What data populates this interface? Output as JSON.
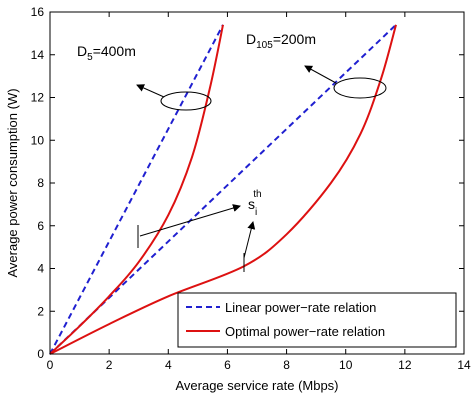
{
  "chart_data": {
    "type": "line",
    "xlabel": "Average service rate (Mbps)",
    "ylabel": "Average power consumption (W)",
    "xlim": [
      0,
      14
    ],
    "ylim": [
      0,
      16
    ],
    "xticks": [
      "0",
      "2",
      "4",
      "6",
      "8",
      "10",
      "12",
      "14"
    ],
    "yticks": [
      "0",
      "2",
      "4",
      "6",
      "8",
      "10",
      "12",
      "14",
      "16"
    ],
    "grid": false,
    "legend": "bottom-right",
    "colors": {
      "linear": "#2020d0",
      "optimal": "#dd1111"
    },
    "series": [
      {
        "name": "Linear power−rate relation",
        "style": "dashed",
        "points": [
          [
            0,
            0
          ],
          [
            5.85,
            15.4
          ]
        ]
      },
      {
        "name": "Linear power−rate relation",
        "style": "dashed",
        "points": [
          [
            0,
            0
          ],
          [
            11.7,
            15.4
          ]
        ]
      },
      {
        "name": "Optimal power−rate relation",
        "style": "solid",
        "points": [
          [
            0,
            0
          ],
          [
            1,
            1.3
          ],
          [
            2,
            2.7
          ],
          [
            3,
            4.3
          ],
          [
            4,
            6.5
          ],
          [
            4.8,
            9.2
          ],
          [
            5.4,
            12.4
          ],
          [
            5.85,
            15.4
          ]
        ]
      },
      {
        "name": "Optimal power−rate relation",
        "style": "solid",
        "points": [
          [
            0,
            0
          ],
          [
            2,
            1.4
          ],
          [
            4,
            2.7
          ],
          [
            6.55,
            4.1
          ],
          [
            8,
            5.6
          ],
          [
            9.5,
            8.0
          ],
          [
            10.5,
            10.3
          ],
          [
            11.2,
            12.9
          ],
          [
            11.7,
            15.4
          ]
        ]
      }
    ],
    "annotations": {
      "d5": {
        "main": "D",
        "sub": "5",
        "rest": "=400m"
      },
      "d105": {
        "main": "D",
        "sub": "105",
        "rest": "=200m"
      },
      "threshold": {
        "main": "s",
        "sub": "i",
        "sup": "th"
      }
    },
    "legend_entries": [
      {
        "label": "Linear power−rate relation",
        "style": "dashed"
      },
      {
        "label": "Optimal power−rate relation",
        "style": "solid"
      }
    ]
  }
}
